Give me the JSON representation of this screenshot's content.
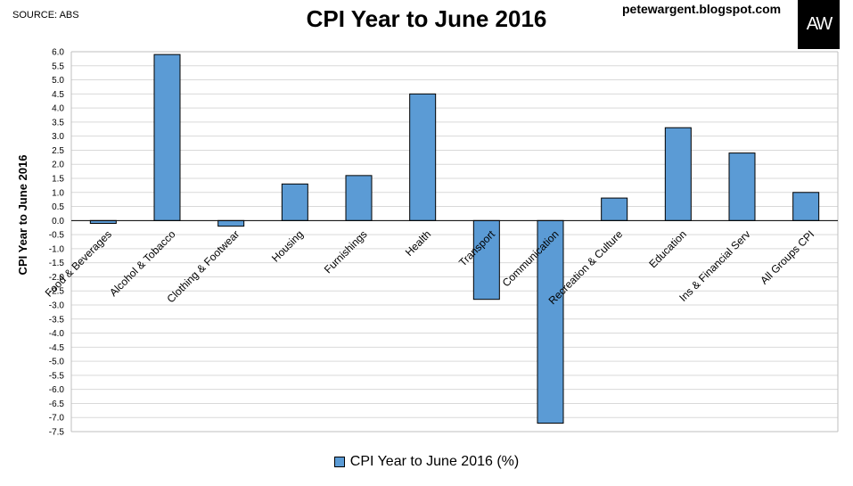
{
  "header": {
    "source": "SOURCE: ABS",
    "title": "CPI Year to June 2016",
    "blog": "petewargent.blogspot.com",
    "logo_text": "AW"
  },
  "colors": {
    "bar": "#5b9bd5",
    "bar_stroke": "#000000",
    "grid": "#d9d9d9"
  },
  "chart_data": {
    "type": "bar",
    "title": "CPI Year to June 2016",
    "ylabel": "CPI Year to June 2016",
    "xlabel": "",
    "ylim": [
      -7.5,
      6.0
    ],
    "ytick_step": 0.5,
    "grid": true,
    "legend_position": "bottom",
    "categories": [
      "Food & Beverages",
      "Alcohol & Tobacco",
      "Clothing & Footwear",
      "Housing",
      "Furnishings",
      "Health",
      "Transport",
      "Communication",
      "Recreation & Culture",
      "Education",
      "Ins & Financial Serv",
      "All Groups CPI"
    ],
    "series": [
      {
        "name": "CPI Year to June 2016 (%)",
        "values": [
          -0.1,
          5.9,
          -0.2,
          1.3,
          1.6,
          4.5,
          -2.8,
          -7.2,
          0.8,
          3.3,
          2.4,
          1.0
        ]
      }
    ]
  }
}
